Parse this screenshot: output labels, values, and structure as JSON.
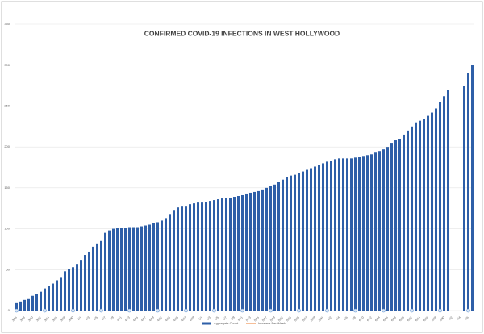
{
  "chart_data": {
    "type": "bar",
    "title": "CONFIRMED COVID-19 INFECTIONS IN WEST HOLLYWOOD",
    "categories": [
      "3/16",
      null,
      "3/18",
      null,
      "3/20",
      null,
      "3/22",
      null,
      "3/24",
      null,
      "3/26",
      null,
      "3/28",
      null,
      "3/30",
      null,
      "4/1",
      null,
      "4/3",
      null,
      "4/5",
      null,
      "4/7",
      null,
      "4/9",
      null,
      "4/11",
      null,
      "4/13",
      null,
      "4/15",
      null,
      "4/17",
      null,
      "4/19",
      null,
      "4/21",
      null,
      "4/23",
      null,
      "4/25",
      null,
      "4/27",
      null,
      "4/29",
      null,
      "5/1",
      null,
      "5/3",
      null,
      "5/5",
      null,
      "5/7",
      null,
      "5/9",
      null,
      "5/11",
      null,
      "5/13",
      null,
      "5/15",
      null,
      "5/17",
      null,
      "5/19",
      null,
      "5/21",
      null,
      "5/23",
      null,
      "5/25",
      null,
      "5/27",
      null,
      "5/29",
      null,
      "5/31",
      null,
      "6/2",
      null,
      "6/4",
      null,
      "6/6",
      null,
      "6/8",
      null,
      "6/10",
      null,
      "6/12",
      null,
      "6/14",
      null,
      "6/16",
      null,
      "6/18",
      null,
      "6/20",
      null,
      "6/22",
      null,
      "6/24",
      null,
      "6/26",
      null,
      "6/28",
      null,
      "6/30",
      null,
      "7/2",
      null,
      "7/4",
      null,
      "7/6",
      null
    ],
    "series": [
      {
        "name": "Aggregate Count",
        "color": "#2e5fa8",
        "values": [
          10,
          11,
          13,
          15,
          18,
          20,
          23,
          27,
          30,
          33,
          37,
          41,
          48,
          51,
          53,
          57,
          62,
          68,
          72,
          78,
          82,
          85,
          95,
          98,
          100,
          101,
          101,
          101,
          102,
          102,
          102,
          103,
          104,
          105,
          107,
          108,
          110,
          113,
          118,
          123,
          126,
          128,
          128,
          130,
          131,
          132,
          132,
          133,
          134,
          135,
          136,
          137,
          138,
          138,
          139,
          140,
          141,
          143,
          144,
          145,
          146,
          148,
          150,
          152,
          154,
          157,
          160,
          163,
          165,
          166,
          168,
          170,
          172,
          174,
          176,
          178,
          180,
          182,
          183,
          185,
          186,
          186,
          186,
          186,
          187,
          188,
          189,
          190,
          191,
          193,
          195,
          197,
          200,
          205,
          208,
          210,
          215,
          220,
          225,
          230,
          232,
          234,
          238,
          242,
          247,
          255,
          262,
          270,
          null,
          null,
          null,
          275,
          290,
          300
        ]
      },
      {
        "name": "Increase Per Week",
        "color": "#ed7d31",
        "values": [
          0,
          null,
          null,
          null,
          null,
          null,
          null,
          0,
          null,
          null,
          null,
          null,
          null,
          null,
          0,
          null,
          null,
          null,
          null,
          null,
          null,
          0,
          null,
          null,
          null,
          null,
          null,
          null,
          0,
          null,
          null,
          null,
          null,
          null,
          null,
          0,
          null,
          null,
          null,
          null,
          null,
          null,
          0,
          null,
          null,
          null,
          null,
          null,
          null,
          0,
          null,
          null,
          null,
          null,
          null,
          null,
          0,
          null,
          null,
          null,
          null,
          null,
          null,
          0,
          null,
          null,
          null,
          null,
          null,
          null,
          0,
          null,
          null,
          null,
          null,
          null,
          null,
          0,
          null,
          null,
          null,
          null,
          null,
          null,
          0,
          null,
          null,
          null,
          null,
          null,
          null,
          0,
          null,
          null,
          null,
          null,
          null,
          null,
          0,
          null,
          null,
          null,
          null,
          null,
          null,
          0,
          null,
          null,
          null,
          null,
          null,
          null,
          0,
          null
        ]
      }
    ],
    "ylim": [
      0,
      350
    ],
    "yticks": [
      0,
      50,
      100,
      150,
      200,
      250,
      300,
      350
    ],
    "grid": true,
    "legend": "bottom"
  }
}
